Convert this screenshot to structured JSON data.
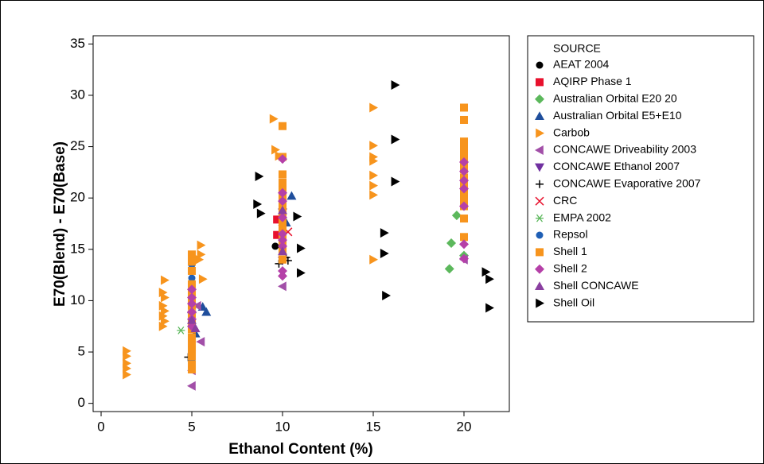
{
  "chart_data": {
    "type": "scatter",
    "x_label": "Ethanol Content (%)",
    "y_label": "E70(Blend) - E70(Base)",
    "legend_title": "SOURCE",
    "legend": "right",
    "xlim": [
      -0.44,
      22.5
    ],
    "ylim": [
      -0.8,
      35.8
    ],
    "xticks": [
      0,
      5,
      10,
      15,
      20
    ],
    "yticks": [
      0,
      5,
      10,
      15,
      20,
      25,
      30,
      35
    ],
    "series": [
      {
        "name": "AEAT 2004",
        "color": "#000000",
        "marker": "circle",
        "x": [
          9.6
        ],
        "values": [
          15.3
        ]
      },
      {
        "name": "AQIRP Phase 1",
        "color": "#e8112d",
        "marker": "square",
        "x": [
          9.7,
          9.7
        ],
        "values": [
          17.9,
          16.4
        ]
      },
      {
        "name": "Australian Orbital E20 20",
        "color": "#5cb85c",
        "marker": "diamond",
        "x": [
          19.6,
          19.3,
          20,
          19.2
        ],
        "values": [
          18.3,
          15.6,
          14.4,
          13.1
        ]
      },
      {
        "name": "Australian Orbital E5+E10",
        "color": "#1f4e9c",
        "marker": "triangle-up",
        "x": [
          5.6,
          5.8,
          10.5,
          10.2,
          5.2
        ],
        "values": [
          9.4,
          8.9,
          20.2,
          17.6,
          6.8
        ]
      },
      {
        "name": "Carbob",
        "color": "#f7941d",
        "marker": "triangle-right",
        "x": [
          1.4,
          1.4,
          1.4,
          1.4,
          1.4,
          3.5,
          3.4,
          3.5,
          3.4,
          3.5,
          3.4,
          3.5,
          3.4,
          5.5,
          5.5,
          5.4,
          5.6,
          9.5,
          9.6,
          9.8,
          15,
          15,
          15,
          15,
          15,
          15,
          15,
          15
        ],
        "values": [
          5.1,
          4.6,
          3.9,
          3.4,
          2.8,
          12,
          10.8,
          10.3,
          9.5,
          9,
          8.5,
          8,
          7.5,
          15.4,
          14.5,
          14,
          12.1,
          27.7,
          24.7,
          24.1,
          28.8,
          25.1,
          24,
          23.6,
          22.2,
          21.2,
          20.3,
          14
        ]
      },
      {
        "name": "CONCAWE Driveability 2003",
        "color": "#a24fa8",
        "marker": "triangle-left",
        "x": [
          5,
          5,
          5.3,
          5.5,
          10,
          20
        ],
        "values": [
          3.2,
          1.7,
          9.5,
          6,
          11.4,
          14
        ]
      },
      {
        "name": "CONCAWE Ethanol 2007",
        "color": "#7030a0",
        "marker": "triangle-down",
        "x": [
          5,
          10,
          10
        ],
        "values": [
          8.5,
          18.6,
          13.9
        ]
      },
      {
        "name": "CONCAWE Evaporative 2007",
        "color": "#000000",
        "marker": "plus",
        "x": [
          4.8,
          5,
          9.8,
          10.2,
          10.3
        ],
        "values": [
          4.5,
          5.1,
          13.6,
          14.2,
          13.9
        ]
      },
      {
        "name": "CRC",
        "color": "#e8112d",
        "marker": "cross",
        "x": [
          10,
          10.3
        ],
        "values": [
          17,
          16.7
        ]
      },
      {
        "name": "EMPA 2002",
        "color": "#5cb85c",
        "marker": "asterisk",
        "x": [
          4.4
        ],
        "values": [
          7.1
        ]
      },
      {
        "name": "Repsol",
        "color": "#1f5fb5",
        "marker": "circle",
        "x": [
          5,
          5,
          5
        ],
        "values": [
          13.5,
          12.2,
          4.2
        ]
      },
      {
        "name": "Shell 1",
        "color": "#f7941d",
        "marker": "square",
        "x": [
          5,
          5,
          5,
          5,
          5,
          5,
          5,
          5,
          5,
          5,
          5,
          5,
          5,
          5,
          5,
          5,
          10,
          10,
          10,
          10,
          10,
          10,
          10,
          10,
          10,
          10,
          10,
          10,
          10,
          10,
          10,
          10,
          20,
          20,
          20,
          20,
          20,
          20,
          20,
          20,
          20,
          20,
          20,
          20,
          20,
          20
        ],
        "values": [
          14.5,
          13.8,
          12.9,
          11.6,
          10.8,
          10.2,
          9.5,
          8.7,
          7.9,
          7.2,
          6.4,
          5.8,
          5.2,
          4.6,
          3.8,
          3.3,
          27,
          24,
          22.3,
          21.5,
          20.8,
          20.3,
          19.8,
          19.2,
          18.6,
          18,
          17.5,
          16.8,
          16,
          15.5,
          14.8,
          14,
          28.8,
          27.6,
          25.5,
          24.8,
          24.2,
          23.5,
          22.8,
          22,
          21.3,
          20.5,
          19.8,
          19.2,
          18,
          16.2
        ]
      },
      {
        "name": "Shell 2",
        "color": "#b540a8",
        "marker": "diamond",
        "x": [
          5,
          5,
          5,
          5,
          5,
          5,
          10,
          10,
          10,
          10,
          10,
          10,
          10,
          10,
          10,
          20,
          20,
          20,
          20,
          20,
          20,
          20
        ],
        "values": [
          11.1,
          10.3,
          9.7,
          8.9,
          8.2,
          7.5,
          23.8,
          20.5,
          19.7,
          18.1,
          16.5,
          15.9,
          15.3,
          12.9,
          12.4,
          23.5,
          22.6,
          21.7,
          20.9,
          19.2,
          15.5,
          14.1
        ]
      },
      {
        "name": "Shell CONCAWE",
        "color": "#8a3fa0",
        "marker": "triangle-up",
        "x": [
          5,
          5.2,
          10,
          10
        ],
        "values": [
          8.1,
          7.3,
          18.8,
          14.8
        ]
      },
      {
        "name": "Shell Oil",
        "color": "#000000",
        "marker": "triangle-right",
        "x": [
          8.7,
          8.6,
          8.8,
          10.8,
          11,
          11,
          15.6,
          15.6,
          15.7,
          16.2,
          16.2,
          16.2,
          21.2,
          21.4,
          21.4
        ],
        "values": [
          22.1,
          19.4,
          18.5,
          18.2,
          15.1,
          12.7,
          16.6,
          14.6,
          10.5,
          31,
          25.7,
          21.6,
          12.8,
          12.1,
          9.3
        ]
      }
    ]
  }
}
